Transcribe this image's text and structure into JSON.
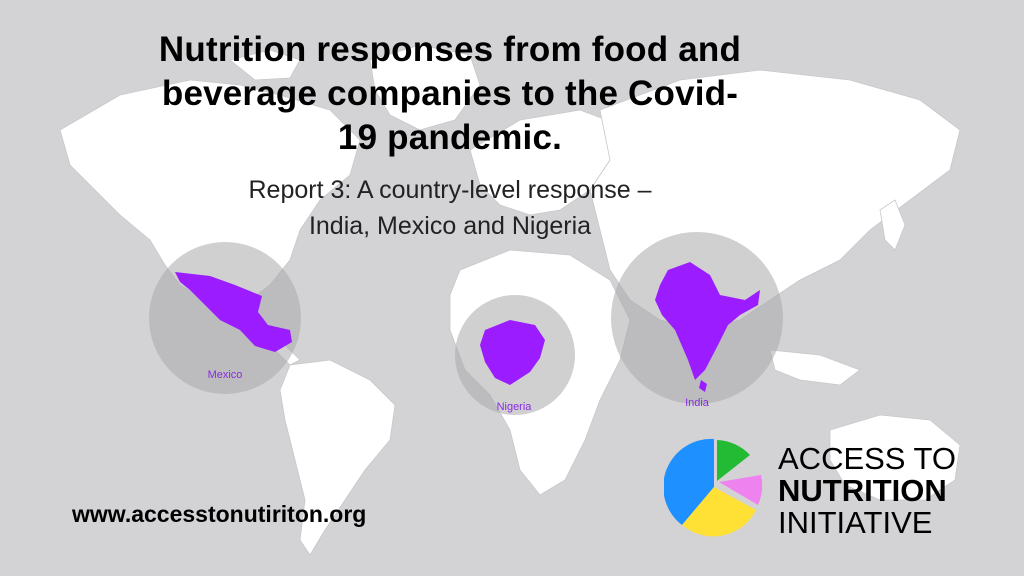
{
  "title": "Nutrition responses from food and beverage companies to the Covid-19 pandemic.",
  "subtitle_line1": "Report 3: A country-level response –",
  "subtitle_line2": "India, Mexico and Nigeria",
  "website": "www.accesstonutiriton.org",
  "logo": {
    "line1": "ACCESS TO",
    "line2": "NUTRITION",
    "line3": "INITIATIVE",
    "colors": [
      "#1e90ff",
      "#ffe135",
      "#ee82ee",
      "#22bb33"
    ]
  },
  "countries": [
    {
      "label": "Mexico"
    },
    {
      "label": "Nigeria"
    },
    {
      "label": "India"
    }
  ],
  "colors": {
    "background": "#d3d3d5",
    "land": "#ffffff",
    "highlight": "#9b1cff",
    "circle": "#a9a9ab"
  }
}
